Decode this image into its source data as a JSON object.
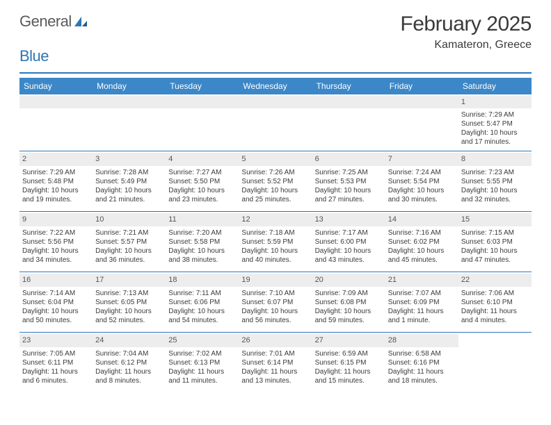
{
  "brand": {
    "word1": "General",
    "word2": "Blue"
  },
  "title": "February 2025",
  "location": "Kamateron, Greece",
  "colors": {
    "header_bar": "#3b87c8",
    "accent": "#2e75b6",
    "daynum_bg": "#ededed",
    "text": "#3a3a3a",
    "brand_gray": "#5a5a5a"
  },
  "day_headers": [
    "Sunday",
    "Monday",
    "Tuesday",
    "Wednesday",
    "Thursday",
    "Friday",
    "Saturday"
  ],
  "weeks": [
    [
      {
        "empty": true
      },
      {
        "empty": true
      },
      {
        "empty": true
      },
      {
        "empty": true
      },
      {
        "empty": true
      },
      {
        "empty": true
      },
      {
        "n": "1",
        "sunrise": "Sunrise: 7:29 AM",
        "sunset": "Sunset: 5:47 PM",
        "day1": "Daylight: 10 hours",
        "day2": "and 17 minutes."
      }
    ],
    [
      {
        "n": "2",
        "sunrise": "Sunrise: 7:29 AM",
        "sunset": "Sunset: 5:48 PM",
        "day1": "Daylight: 10 hours",
        "day2": "and 19 minutes."
      },
      {
        "n": "3",
        "sunrise": "Sunrise: 7:28 AM",
        "sunset": "Sunset: 5:49 PM",
        "day1": "Daylight: 10 hours",
        "day2": "and 21 minutes."
      },
      {
        "n": "4",
        "sunrise": "Sunrise: 7:27 AM",
        "sunset": "Sunset: 5:50 PM",
        "day1": "Daylight: 10 hours",
        "day2": "and 23 minutes."
      },
      {
        "n": "5",
        "sunrise": "Sunrise: 7:26 AM",
        "sunset": "Sunset: 5:52 PM",
        "day1": "Daylight: 10 hours",
        "day2": "and 25 minutes."
      },
      {
        "n": "6",
        "sunrise": "Sunrise: 7:25 AM",
        "sunset": "Sunset: 5:53 PM",
        "day1": "Daylight: 10 hours",
        "day2": "and 27 minutes."
      },
      {
        "n": "7",
        "sunrise": "Sunrise: 7:24 AM",
        "sunset": "Sunset: 5:54 PM",
        "day1": "Daylight: 10 hours",
        "day2": "and 30 minutes."
      },
      {
        "n": "8",
        "sunrise": "Sunrise: 7:23 AM",
        "sunset": "Sunset: 5:55 PM",
        "day1": "Daylight: 10 hours",
        "day2": "and 32 minutes."
      }
    ],
    [
      {
        "n": "9",
        "sunrise": "Sunrise: 7:22 AM",
        "sunset": "Sunset: 5:56 PM",
        "day1": "Daylight: 10 hours",
        "day2": "and 34 minutes."
      },
      {
        "n": "10",
        "sunrise": "Sunrise: 7:21 AM",
        "sunset": "Sunset: 5:57 PM",
        "day1": "Daylight: 10 hours",
        "day2": "and 36 minutes."
      },
      {
        "n": "11",
        "sunrise": "Sunrise: 7:20 AM",
        "sunset": "Sunset: 5:58 PM",
        "day1": "Daylight: 10 hours",
        "day2": "and 38 minutes."
      },
      {
        "n": "12",
        "sunrise": "Sunrise: 7:18 AM",
        "sunset": "Sunset: 5:59 PM",
        "day1": "Daylight: 10 hours",
        "day2": "and 40 minutes."
      },
      {
        "n": "13",
        "sunrise": "Sunrise: 7:17 AM",
        "sunset": "Sunset: 6:00 PM",
        "day1": "Daylight: 10 hours",
        "day2": "and 43 minutes."
      },
      {
        "n": "14",
        "sunrise": "Sunrise: 7:16 AM",
        "sunset": "Sunset: 6:02 PM",
        "day1": "Daylight: 10 hours",
        "day2": "and 45 minutes."
      },
      {
        "n": "15",
        "sunrise": "Sunrise: 7:15 AM",
        "sunset": "Sunset: 6:03 PM",
        "day1": "Daylight: 10 hours",
        "day2": "and 47 minutes."
      }
    ],
    [
      {
        "n": "16",
        "sunrise": "Sunrise: 7:14 AM",
        "sunset": "Sunset: 6:04 PM",
        "day1": "Daylight: 10 hours",
        "day2": "and 50 minutes."
      },
      {
        "n": "17",
        "sunrise": "Sunrise: 7:13 AM",
        "sunset": "Sunset: 6:05 PM",
        "day1": "Daylight: 10 hours",
        "day2": "and 52 minutes."
      },
      {
        "n": "18",
        "sunrise": "Sunrise: 7:11 AM",
        "sunset": "Sunset: 6:06 PM",
        "day1": "Daylight: 10 hours",
        "day2": "and 54 minutes."
      },
      {
        "n": "19",
        "sunrise": "Sunrise: 7:10 AM",
        "sunset": "Sunset: 6:07 PM",
        "day1": "Daylight: 10 hours",
        "day2": "and 56 minutes."
      },
      {
        "n": "20",
        "sunrise": "Sunrise: 7:09 AM",
        "sunset": "Sunset: 6:08 PM",
        "day1": "Daylight: 10 hours",
        "day2": "and 59 minutes."
      },
      {
        "n": "21",
        "sunrise": "Sunrise: 7:07 AM",
        "sunset": "Sunset: 6:09 PM",
        "day1": "Daylight: 11 hours",
        "day2": "and 1 minute."
      },
      {
        "n": "22",
        "sunrise": "Sunrise: 7:06 AM",
        "sunset": "Sunset: 6:10 PM",
        "day1": "Daylight: 11 hours",
        "day2": "and 4 minutes."
      }
    ],
    [
      {
        "n": "23",
        "sunrise": "Sunrise: 7:05 AM",
        "sunset": "Sunset: 6:11 PM",
        "day1": "Daylight: 11 hours",
        "day2": "and 6 minutes."
      },
      {
        "n": "24",
        "sunrise": "Sunrise: 7:04 AM",
        "sunset": "Sunset: 6:12 PM",
        "day1": "Daylight: 11 hours",
        "day2": "and 8 minutes."
      },
      {
        "n": "25",
        "sunrise": "Sunrise: 7:02 AM",
        "sunset": "Sunset: 6:13 PM",
        "day1": "Daylight: 11 hours",
        "day2": "and 11 minutes."
      },
      {
        "n": "26",
        "sunrise": "Sunrise: 7:01 AM",
        "sunset": "Sunset: 6:14 PM",
        "day1": "Daylight: 11 hours",
        "day2": "and 13 minutes."
      },
      {
        "n": "27",
        "sunrise": "Sunrise: 6:59 AM",
        "sunset": "Sunset: 6:15 PM",
        "day1": "Daylight: 11 hours",
        "day2": "and 15 minutes."
      },
      {
        "n": "28",
        "sunrise": "Sunrise: 6:58 AM",
        "sunset": "Sunset: 6:16 PM",
        "day1": "Daylight: 11 hours",
        "day2": "and 18 minutes."
      },
      {
        "empty": true,
        "noband": true
      }
    ]
  ]
}
